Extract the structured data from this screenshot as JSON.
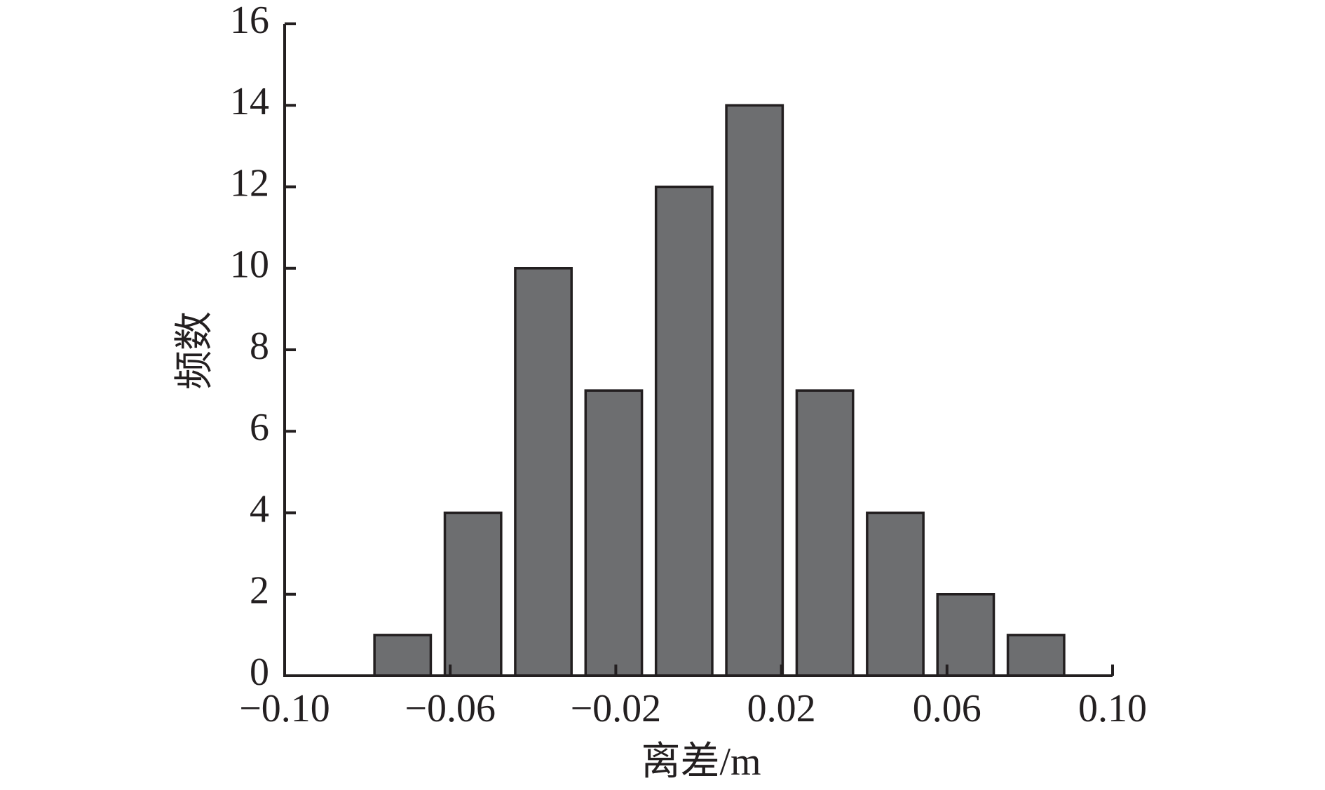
{
  "chart_data": {
    "type": "histogram",
    "x_label": "离差/m",
    "y_label": "频数",
    "bins": [
      -0.08,
      -0.063,
      -0.046,
      -0.029,
      -0.012,
      0.005,
      0.022,
      0.039,
      0.056,
      0.073,
      0.09
    ],
    "values": [
      1,
      4,
      10,
      7,
      12,
      14,
      7,
      4,
      2,
      1
    ],
    "color": "#6d6e70",
    "xlim": [
      -0.1,
      0.1
    ],
    "xticks": [
      {
        "value": -0.1,
        "label": "−0.10"
      },
      {
        "value": -0.06,
        "label": "−0.06"
      },
      {
        "value": -0.02,
        "label": "−0.02"
      },
      0.02,
      0.06,
      {
        "value": 0.1,
        "label": "0.10"
      }
    ],
    "ylim": [
      0,
      16
    ],
    "yticks": [
      0,
      2,
      4,
      6,
      8,
      10,
      12,
      14,
      16
    ],
    "grid": false
  }
}
